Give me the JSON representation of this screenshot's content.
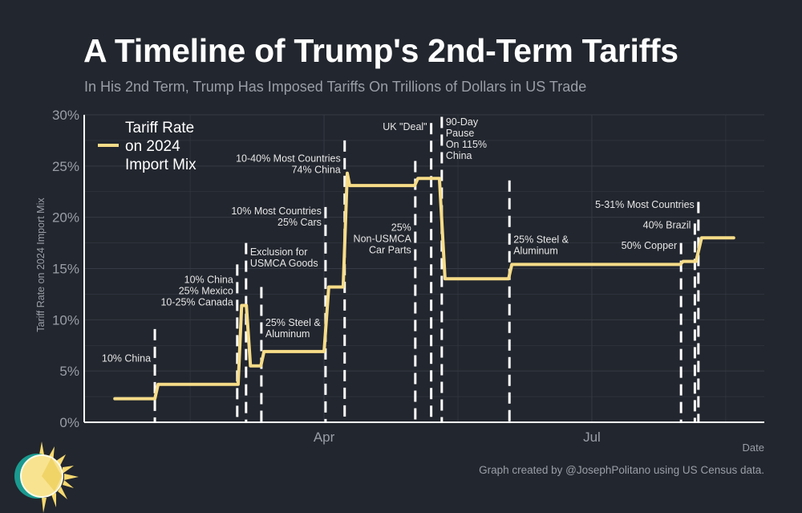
{
  "chart_data": {
    "type": "line",
    "title": "A Timeline of Trump's 2nd-Term Tariffs",
    "subtitle": "In His 2nd Term, Trump Has Imposed Tariffs On Trillions of Dollars in US Trade",
    "xlabel": "Date",
    "ylabel": "Tariff Rate on 2024 Import Mix",
    "caption": "Graph created by @JosephPolitano using US Census data.",
    "x_unit": "day of year 2025 (Jan 1 = 0)",
    "xlim": [
      8.5,
      239.6
    ],
    "ylim": [
      0,
      30
    ],
    "y_ticks": [
      0,
      5,
      10,
      15,
      20,
      25,
      30
    ],
    "y_tick_labels": [
      "0%",
      "5%",
      "10%",
      "15%",
      "20%",
      "25%",
      "30%"
    ],
    "x_ticks": [
      {
        "day": 90,
        "label": "Apr"
      },
      {
        "day": 181,
        "label": "Jul"
      }
    ],
    "x_minor_ticks": [
      44.5,
      135.5,
      226.5
    ],
    "grid": true,
    "legend": {
      "position": "top-left",
      "lines": [
        "Tariff Rate",
        "on 2024",
        "Import Mix"
      ]
    },
    "series": [
      {
        "name": "Tariff Rate on 2024 Import Mix",
        "color": "#f6dc88",
        "points": [
          [
            18.9,
            2.3
          ],
          [
            32.5,
            2.3
          ],
          [
            33.6,
            3.7
          ],
          [
            60.8,
            3.7
          ],
          [
            62.0,
            11.4
          ],
          [
            63.6,
            11.4
          ],
          [
            65.0,
            5.5
          ],
          [
            68.5,
            5.5
          ],
          [
            69.6,
            6.9
          ],
          [
            90.0,
            6.9
          ],
          [
            91.6,
            13.2
          ],
          [
            96.5,
            13.2
          ],
          [
            97.9,
            24.3
          ],
          [
            98.7,
            23.1
          ],
          [
            120.8,
            23.1
          ],
          [
            121.9,
            23.8
          ],
          [
            129.2,
            23.8
          ],
          [
            131.1,
            14.0
          ],
          [
            152.7,
            14.0
          ],
          [
            153.8,
            15.4
          ],
          [
            211.0,
            15.4
          ],
          [
            212.0,
            15.7
          ],
          [
            216.4,
            15.7
          ],
          [
            218.3,
            18.0
          ],
          [
            229.2,
            18.0
          ]
        ]
      }
    ],
    "events": [
      {
        "day": 32.5,
        "line_top": 9.1,
        "side": "left",
        "label_y": 5.9,
        "lines": [
          "10% China"
        ]
      },
      {
        "day": 60.5,
        "line_top": 15.4,
        "side": "left",
        "label_y": 13.6,
        "lines": [
          "10% China",
          "25% Mexico",
          "10-25% Canada"
        ]
      },
      {
        "day": 63.5,
        "line_top": 17.5,
        "side": "right",
        "label_y": 16.3,
        "lines": [
          "Exclusion for",
          "USMCA Goods"
        ]
      },
      {
        "day": 68.7,
        "line_top": 13.2,
        "side": "right",
        "label_y": 9.4,
        "lines": [
          "25% Steel &",
          "Aluminum"
        ]
      },
      {
        "day": 90.5,
        "line_top": 21.0,
        "side": "left",
        "label_y": 20.3,
        "lines": [
          "10% Most Countries",
          "25% Cars"
        ]
      },
      {
        "day": 97.0,
        "line_top": 27.5,
        "side": "left",
        "label_y": 25.4,
        "lines": [
          "10-40% Most Countries",
          "74% China"
        ]
      },
      {
        "day": 121.0,
        "line_top": 25.5,
        "side": "left",
        "label_y": 18.7,
        "lines": [
          "25%",
          "Non-USMCA",
          "Car Parts"
        ]
      },
      {
        "day": 126.4,
        "line_top": 29.2,
        "side": "left",
        "label_y": 28.5,
        "lines": [
          "UK \"Deal\""
        ]
      },
      {
        "day": 130.0,
        "line_top": 29.8,
        "side": "right",
        "label_y": 29.0,
        "lines": [
          "90-Day",
          "Pause",
          "On 115%",
          "China"
        ]
      },
      {
        "day": 153.0,
        "line_top": 23.6,
        "side": "right",
        "label_y": 17.5,
        "lines": [
          "25% Steel &",
          "Aluminum"
        ]
      },
      {
        "day": 211.3,
        "line_top": 17.5,
        "side": "left",
        "label_y": 16.9,
        "lines": [
          "50% Copper"
        ]
      },
      {
        "day": 216.0,
        "line_top": 19.4,
        "side": "left",
        "label_y": 18.9,
        "lines": [
          "40% Brazil"
        ]
      },
      {
        "day": 217.2,
        "line_top": 21.5,
        "side": "left",
        "label_y": 20.9,
        "lines": [
          "5-31% Most Countries"
        ]
      }
    ],
    "colors": {
      "background": "#22262e",
      "grid": "#353a44",
      "axis": "#ffffff",
      "event_line": "#ffffff",
      "muted_text": "#9a9ea6"
    }
  }
}
